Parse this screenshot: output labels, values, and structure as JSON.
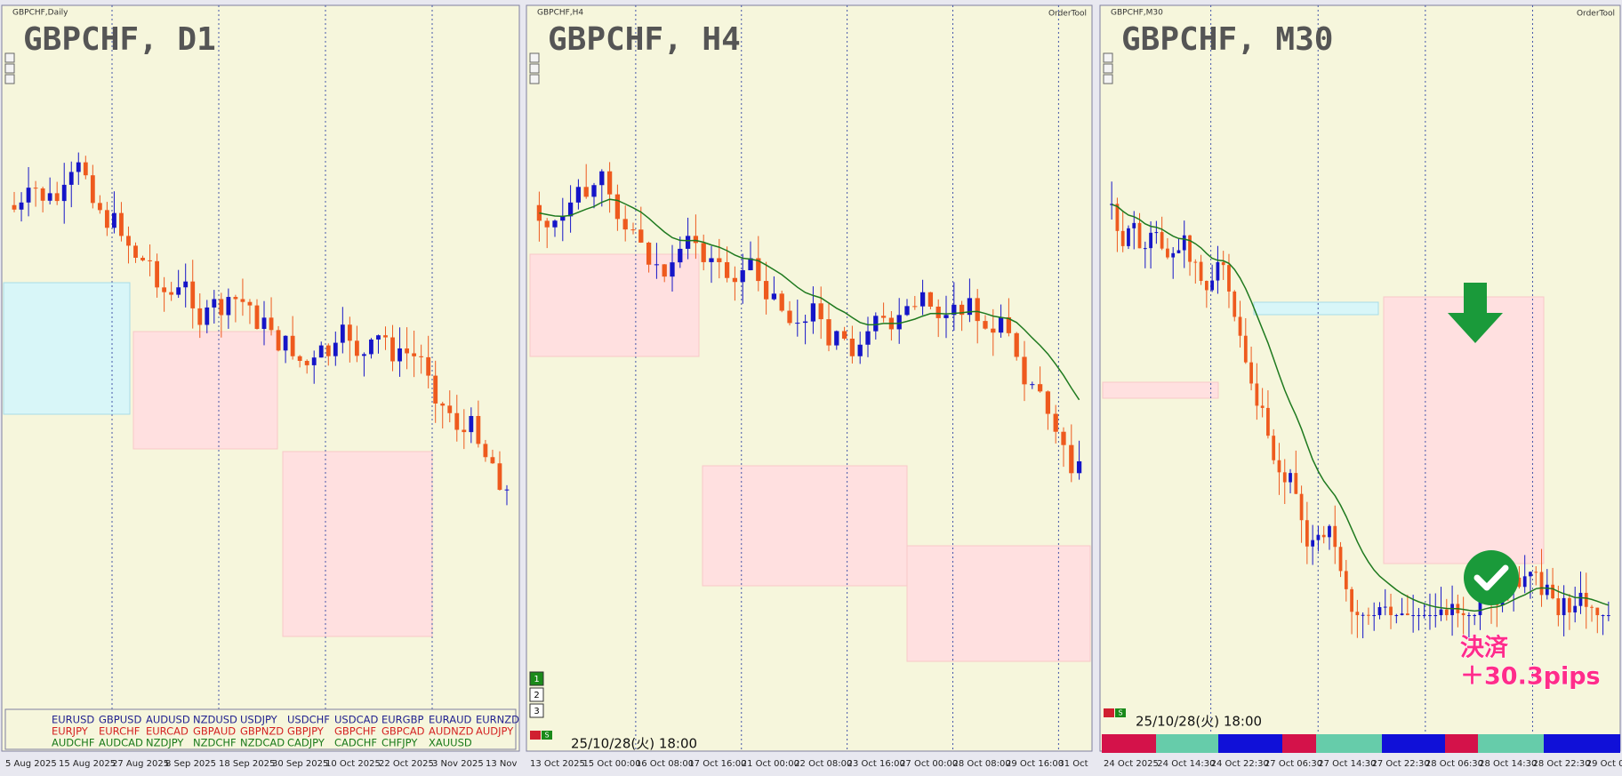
{
  "panels": [
    {
      "caption": "GBPCHF,Daily",
      "title": "GBPCHF, D1",
      "x_labels": [
        "5 Aug 2025",
        "15 Aug 2025",
        "27 Aug 2025",
        "8 Sep 2025",
        "18 Sep 2025",
        "30 Sep 2025",
        "10 Oct 2025",
        "22 Oct 2025",
        "3 Nov 2025",
        "13 Nov"
      ]
    },
    {
      "caption": "GBPCHF,H4",
      "title": "GBPCHF, H4",
      "order_tool": "OrderTool",
      "buttons": [
        "1",
        "2",
        "3"
      ],
      "timestamp": "25/10/28(火) 18:00",
      "x_labels": [
        "13 Oct 2025",
        "15 Oct 00:00",
        "16 Oct 08:00",
        "17 Oct 16:00",
        "21 Oct 00:00",
        "22 Oct 08:00",
        "23 Oct 16:00",
        "27 Oct 00:00",
        "28 Oct 08:00",
        "29 Oct 16:00",
        "31 Oct"
      ]
    },
    {
      "caption": "GBPCHF,M30",
      "title": "GBPCHF, M30",
      "order_tool": "OrderTool",
      "timestamp": "25/10/28(火) 18:00",
      "annotation": [
        "決済",
        "＋30.3pips"
      ],
      "x_labels": [
        "24 Oct 2025",
        "24 Oct 14:30",
        "24 Oct 22:30",
        "27 Oct 06:30",
        "27 Oct 14:30",
        "27 Oct 22:30",
        "28 Oct 06:30",
        "28 Oct 14:30",
        "28 Oct 22:30",
        "29 Oct 0"
      ]
    }
  ],
  "symbols": [
    [
      "EURUSD",
      "GBPUSD",
      "AUDUSD",
      "NZDUSD",
      "USDJPY",
      "USDCHF",
      "USDCAD",
      "EURGBP",
      "EURAUD",
      "EURNZD"
    ],
    [
      "EURJPY",
      "EURCHF",
      "EURCAD",
      "GBPAUD",
      "GBPNZD",
      "GBPJPY",
      "GBPCHF",
      "GBPCAD",
      "AUDNZD",
      "AUDJPY"
    ],
    [
      "AUDCHF",
      "AUDCAD",
      "NZDJPY",
      "NZDCHF",
      "NZDCAD",
      "CADJPY",
      "CADCHF",
      "CHFJPY",
      "XAUUSD"
    ]
  ],
  "button_s": "S"
}
